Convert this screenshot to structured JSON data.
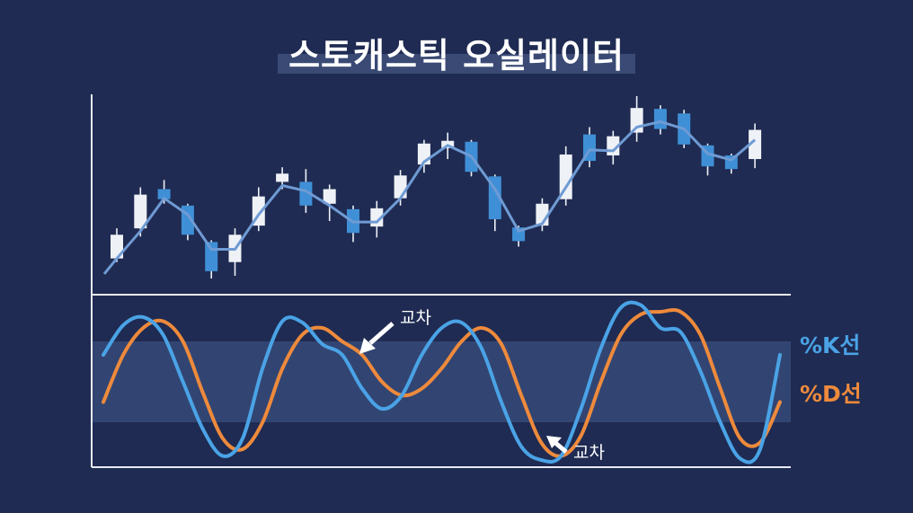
{
  "title": "스토캐스틱 오실레이터",
  "colors": {
    "background": "#1f2b52",
    "axis": "#e8ecf5",
    "bull_candle": "#eef1f6",
    "bear_candle": "#3f8fd6",
    "price_line": "#6f9bd4",
    "k_line": "#4aa3e6",
    "d_line": "#ee8a3c",
    "band": "#3a4f7e"
  },
  "chart_data": [
    {
      "type": "candlestick",
      "title": "",
      "candles": [
        {
          "o": 22,
          "h": 55,
          "l": 18,
          "c": 48
        },
        {
          "o": 55,
          "h": 100,
          "l": 46,
          "c": 92
        },
        {
          "o": 98,
          "h": 108,
          "l": 82,
          "c": 87
        },
        {
          "o": 80,
          "h": 82,
          "l": 42,
          "c": 48
        },
        {
          "o": 40,
          "h": 42,
          "l": 0,
          "c": 8
        },
        {
          "o": 18,
          "h": 55,
          "l": 3,
          "c": 48
        },
        {
          "o": 58,
          "h": 100,
          "l": 52,
          "c": 90
        },
        {
          "o": 106,
          "h": 122,
          "l": 98,
          "c": 115
        },
        {
          "o": 106,
          "h": 120,
          "l": 72,
          "c": 80
        },
        {
          "o": 82,
          "h": 103,
          "l": 63,
          "c": 98
        },
        {
          "o": 76,
          "h": 80,
          "l": 40,
          "c": 50
        },
        {
          "o": 57,
          "h": 85,
          "l": 45,
          "c": 77
        },
        {
          "o": 88,
          "h": 119,
          "l": 80,
          "c": 113
        },
        {
          "o": 125,
          "h": 152,
          "l": 116,
          "c": 148
        },
        {
          "o": 143,
          "h": 160,
          "l": 131,
          "c": 151
        },
        {
          "o": 150,
          "h": 152,
          "l": 112,
          "c": 117
        },
        {
          "o": 112,
          "h": 114,
          "l": 52,
          "c": 65
        },
        {
          "o": 56,
          "h": 58,
          "l": 35,
          "c": 41
        },
        {
          "o": 58,
          "h": 88,
          "l": 52,
          "c": 82
        },
        {
          "o": 87,
          "h": 145,
          "l": 80,
          "c": 136
        },
        {
          "o": 158,
          "h": 166,
          "l": 122,
          "c": 129
        },
        {
          "o": 135,
          "h": 162,
          "l": 125,
          "c": 156
        },
        {
          "o": 160,
          "h": 200,
          "l": 150,
          "c": 187
        },
        {
          "o": 186,
          "h": 190,
          "l": 158,
          "c": 164
        },
        {
          "o": 181,
          "h": 185,
          "l": 143,
          "c": 147
        },
        {
          "o": 146,
          "h": 148,
          "l": 113,
          "c": 123
        },
        {
          "o": 135,
          "h": 137,
          "l": 115,
          "c": 120
        },
        {
          "o": 131,
          "h": 170,
          "l": 121,
          "c": 163
        }
      ],
      "moving_average": [
        22,
        52,
        88,
        70,
        32,
        32,
        70,
        102,
        96,
        80,
        62,
        62,
        88,
        128,
        146,
        134,
        98,
        52,
        60,
        100,
        141,
        140,
        166,
        172,
        164,
        137,
        130,
        152
      ]
    },
    {
      "type": "line",
      "title": "",
      "ylim": [
        -60,
        60
      ],
      "band": [
        -30,
        30
      ],
      "series": [
        {
          "name": "%K선",
          "color": "#4aa3e6",
          "values": [
            20,
            42,
            48,
            35,
            0,
            -35,
            -55,
            -42,
            10,
            45,
            44,
            28,
            20,
            -5,
            -20,
            -10,
            20,
            40,
            44,
            25,
            -15,
            -48,
            -58,
            -55,
            -20,
            25,
            55,
            57,
            40,
            37,
            8,
            -30,
            -57,
            -50,
            20
          ]
        },
        {
          "name": "%D선",
          "color": "#ee8a3c",
          "values": [
            -15,
            20,
            40,
            45,
            30,
            -8,
            -42,
            -50,
            -30,
            10,
            35,
            40,
            30,
            20,
            0,
            -10,
            -5,
            10,
            30,
            40,
            28,
            -10,
            -45,
            -55,
            -40,
            0,
            35,
            50,
            52,
            52,
            35,
            -5,
            -42,
            -45,
            -15
          ]
        }
      ],
      "annotations": [
        "교차",
        "교차"
      ]
    }
  ]
}
